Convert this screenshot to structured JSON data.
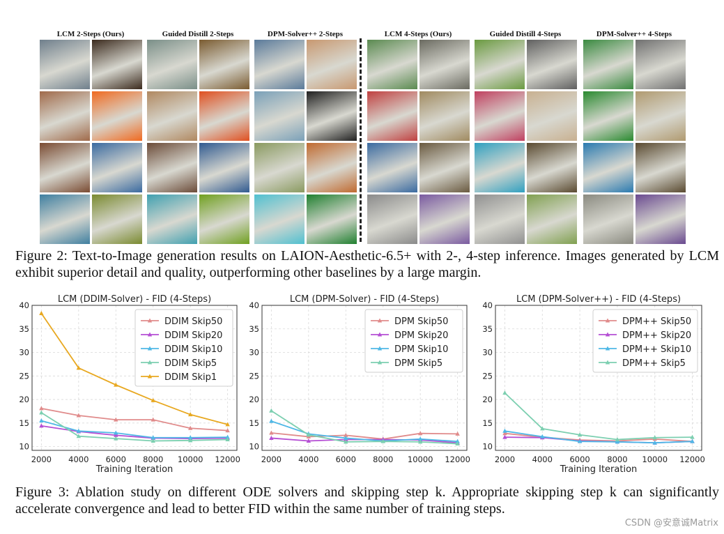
{
  "figure2": {
    "group_titles": [
      "LCM 2-Steps (Ours)",
      "Guided Distill 2-Steps",
      "DPM-Solver++ 2-Steps",
      "LCM 4-Steps (Ours)",
      "Guided Distill 4-Steps",
      "DPM-Solver++ 4-Steps"
    ],
    "caption": "Figure 2: Text-to-Image generation results on LAION-Aesthetic-6.5+ with 2-, 4-step inference. Images generated by LCM exhibit superior detail and quality, outperforming other baselines by a large margin.",
    "tile_colors": {
      "g0": [
        [
          "#6f7f8c",
          "#3b2a1d"
        ],
        [
          "#a06a4a",
          "#f06a20"
        ],
        [
          "#7a4b32",
          "#3a6aa0"
        ],
        [
          "#3f7fa0",
          "#7a8a30"
        ]
      ],
      "g1": [
        [
          "#7a8f88",
          "#7a5b30"
        ],
        [
          "#b08860",
          "#e05020"
        ],
        [
          "#6b4b38",
          "#305a90"
        ],
        [
          "#40a0b0",
          "#70a020"
        ]
      ],
      "g2": [
        [
          "#5a7a9a",
          "#c89870"
        ],
        [
          "#7aa0b8",
          "#202020"
        ],
        [
          "#8a9a60",
          "#c06a30"
        ],
        [
          "#50c0d0",
          "#208030"
        ]
      ],
      "g3": [
        [
          "#5a8a50",
          "#6a6a60"
        ],
        [
          "#c04040",
          "#a08a60"
        ],
        [
          "#3a6aa0",
          "#6a5a40"
        ],
        [
          "#8a8a8a",
          "#7a5aa0"
        ]
      ],
      "g4": [
        [
          "#6a9a40",
          "#606060"
        ],
        [
          "#c04060",
          "#c8b090"
        ],
        [
          "#30a0c0",
          "#5a4a30"
        ],
        [
          "#909090",
          "#80a050"
        ]
      ],
      "g5": [
        [
          "#3a8a40",
          "#707070"
        ],
        [
          "#2a8a30",
          "#b09a70"
        ],
        [
          "#2a7ab0",
          "#5a4a30"
        ],
        [
          "#8a8a80",
          "#6a4a90"
        ]
      ]
    }
  },
  "figure3": {
    "caption": "Figure 3: Ablation study on different ODE solvers and skipping step k. Appropriate skipping step k can significantly accelerate convergence and lead to better FID within the same number of training steps."
  },
  "chart_data": [
    {
      "type": "line",
      "title": "LCM (DDIM-Solver) - FID (4-Steps)",
      "xlabel": "Training Iteration",
      "ylabel": "",
      "x": [
        2000,
        4000,
        6000,
        8000,
        10000,
        12000
      ],
      "xlim": [
        1500,
        12500
      ],
      "ylim": [
        9.2,
        40
      ],
      "yticks": [
        10,
        15,
        20,
        25,
        30,
        35,
        40
      ],
      "grid": true,
      "legend": "top-right",
      "series": [
        {
          "name": "DDIM Skip50",
          "color": "#e08b8b",
          "values": [
            18.1,
            16.6,
            15.7,
            15.7,
            13.9,
            13.4
          ]
        },
        {
          "name": "DDIM Skip20",
          "color": "#b54fd4",
          "values": [
            14.4,
            13.2,
            12.4,
            11.8,
            11.7,
            11.8
          ]
        },
        {
          "name": "DDIM Skip10",
          "color": "#4fb8e6",
          "values": [
            15.5,
            13.3,
            12.9,
            11.9,
            11.9,
            12.0
          ]
        },
        {
          "name": "DDIM Skip5",
          "color": "#7ccfb0",
          "values": [
            17.2,
            12.2,
            11.7,
            11.2,
            11.3,
            11.5
          ]
        },
        {
          "name": "DDIM Skip1",
          "color": "#e8a820",
          "values": [
            38.3,
            26.7,
            23.1,
            19.8,
            16.8,
            14.7
          ]
        }
      ]
    },
    {
      "type": "line",
      "title": "LCM (DPM-Solver) - FID (4-Steps)",
      "xlabel": "",
      "ylabel": "",
      "x": [
        2000,
        4000,
        6000,
        8000,
        10000,
        12000
      ],
      "xlim": [
        1500,
        12500
      ],
      "ylim": [
        9.2,
        40
      ],
      "yticks": [
        10,
        15,
        20,
        25,
        30,
        35,
        40
      ],
      "grid": true,
      "legend": "top-right",
      "series": [
        {
          "name": "DPM Skip50",
          "color": "#e08b8b",
          "values": [
            12.9,
            12.1,
            12.4,
            11.6,
            12.8,
            12.7
          ]
        },
        {
          "name": "DPM Skip20",
          "color": "#b54fd4",
          "values": [
            11.8,
            11.2,
            11.5,
            11.5,
            11.4,
            10.8
          ]
        },
        {
          "name": "DPM Skip10",
          "color": "#4fb8e6",
          "values": [
            15.4,
            12.7,
            11.8,
            11.2,
            11.6,
            11.1
          ]
        },
        {
          "name": "DPM Skip5",
          "color": "#7ccfb0",
          "values": [
            17.6,
            12.5,
            11.0,
            11.1,
            11.0,
            10.6
          ]
        }
      ]
    },
    {
      "type": "line",
      "title": "LCM (DPM-Solver++) - FID (4-Steps)",
      "xlabel": "Training Iteration",
      "ylabel": "",
      "x": [
        2000,
        4000,
        6000,
        8000,
        10000,
        12000
      ],
      "xlim": [
        1500,
        12500
      ],
      "ylim": [
        9.2,
        40
      ],
      "yticks": [
        10,
        15,
        20,
        25,
        30,
        35,
        40
      ],
      "grid": true,
      "legend": "top-right",
      "series": [
        {
          "name": "DPM++ Skip50",
          "color": "#e08b8b",
          "values": [
            12.8,
            12.0,
            11.4,
            11.2,
            11.6,
            11.1
          ]
        },
        {
          "name": "DPM++ Skip20",
          "color": "#b54fd4",
          "values": [
            12.0,
            11.9,
            11.2,
            11.0,
            10.8,
            11.1
          ]
        },
        {
          "name": "DPM++ Skip10",
          "color": "#4fb8e6",
          "values": [
            13.3,
            12.1,
            11.1,
            11.0,
            10.8,
            11.1
          ]
        },
        {
          "name": "DPM++ Skip5",
          "color": "#7ccfb0",
          "values": [
            21.4,
            13.8,
            12.5,
            11.5,
            11.9,
            12.0
          ]
        }
      ]
    }
  ],
  "watermark": "CSDN @安意诚Matrix"
}
